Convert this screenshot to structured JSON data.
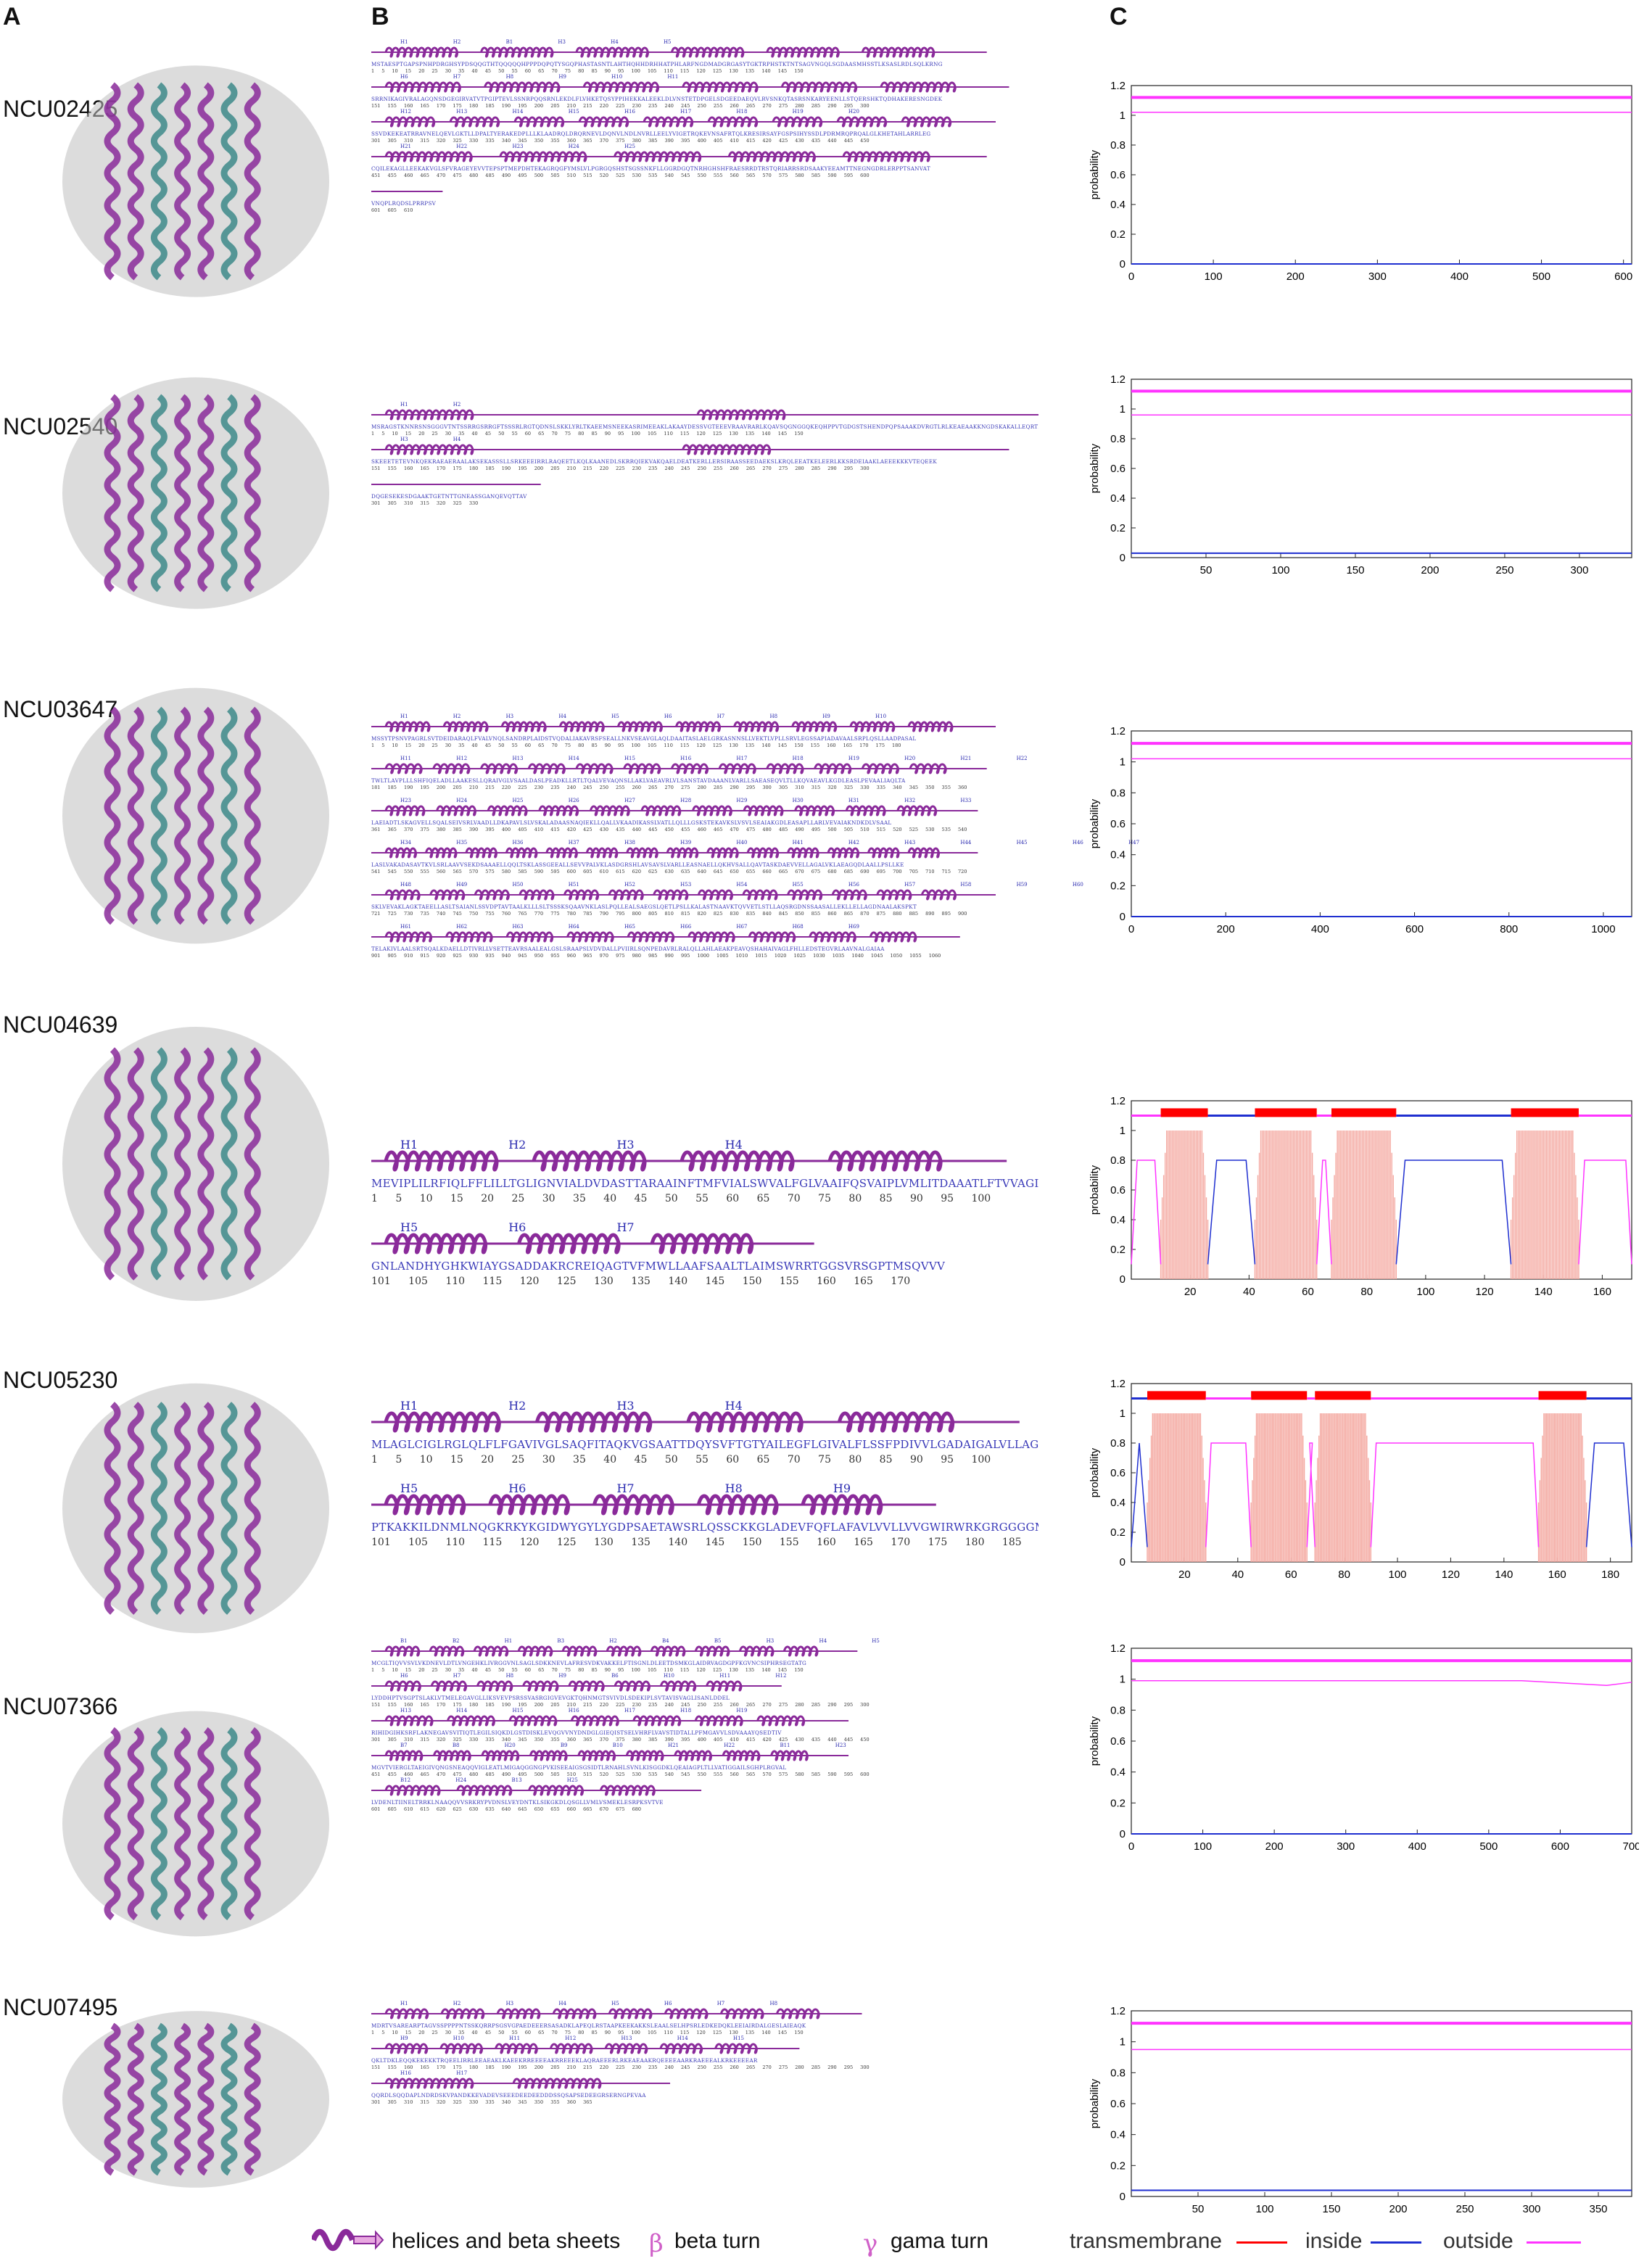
{
  "panels": {
    "a": "A",
    "b": "B",
    "c": "C"
  },
  "proteins": [
    {
      "id": "NCU02425",
      "seq_lines": [
        {
          "seq": "MSTAESPTGAPSPNHPDRGHSYPDSQQGTHTQQQQQHPPPDQPQTYSGQPHASTASNTLAHTHQHHDRHHATPHLARFNGDMADGRGASYTGKTRPHSTKTNTSAGVNGQLSGDAASMHSSTLKSASLRDLSQLKRNG",
          "nums": "1 5 10 15 20 25 30 35 40 45 50 55 60 65 70 75 80 85 90 95 100 105 110 115 120 125 130 135 140 145 150",
          "names": "H1 H2 B1 H3 H4 H5"
        },
        {
          "seq": "SRRNIKAGIVRALAGQNSDGEGIRVATVTPGIPTEVLSSNRPQQSRNLEKDLFLVHKETQSYPPIHEKKALEEKLDLVNSTETDPGELSDGEEDAEQVLRVSNKQTASRSNKARYEENLLSTQERSHKTQDHAKERESNGDEK",
          "nums": "151 155 160 165 170 175 180 185 190 195 200 205 210 215 220 225 230 235 240 245 250 255 260 265 270 275 280 285 290 295 300",
          "names": "H6 H7 H8 H9 H10 H11"
        },
        {
          "seq": "SSVDKEKEATRRAVNELQEVLGKTLLDPALTYERAKEDPLLLKLAADRQLDRQRNEVLDQNVLNDLNVRLLEELYVIGETRQKEVNSAFRTQLKRESIRSAYFGSPSIHYSSDLPDRMRQPRQALGLKHETAHLARRLEG",
          "nums": "301 305 310 315 320 325 330 335 340 345 350 355 360 365 370 375 380 385 390 395 400 405 410 415 420 425 430 435 440 445 450",
          "names": "H12 H13 H14 H15 H16 H17 H18 H19 H20"
        },
        {
          "seq": "CQILEKAGLLEEKAKVGLSFVRAGEYEVVTEPSPTMEPDHTEKAGRQGFYMSLVLPGRGQSHSTSGSSNKFLLGGRDGQTNRHGHSHFRAESRRDTRSTQRIARRSRDSAAKYEEAMTTNEGNGDRLERPPTSANVAT",
          "nums": "451 455 460 465 470 475 480 485 490 495 500 505 510 515 520 525 530 535 540 545 550 555 560 565 570 575 580 585 590 595 600",
          "names": "H21 H22 H23 H24 H25"
        },
        {
          "seq": "VNQPLRQDSLPRRPSV",
          "nums": "601 605 610",
          "names": ""
        }
      ],
      "plot": {
        "xmax": 610,
        "xticks": [
          0,
          100,
          200,
          300,
          400,
          500,
          600
        ],
        "outside": 1.12,
        "outside_thin": 1.02,
        "inside": 0.0
      }
    },
    {
      "id": "NCU02540",
      "seq_lines": [
        {
          "seq": "MSRAGSTKNNRSNSGGGVTNTSSRRGSRRGFTSSSRLRGTQDNSLSKKLYRLTKAEEMSNEEKASRIMEEAKLAKAAYDESSVGTEEEVRAAVRARLKQAVSQGNGGQKEQHPPVTGDGSTSHENDPQPSAAAKDVRGTLRLKEAEAAKKNGDSKAKALLEQRTEDLDASLKKVSTSIREIEADAKELSKKLKEEKLTAEETRTLAAA",
          "nums": "1 5 10 15 20 25 30 35 40 45 50 55 60 65 70 75 80 85 90 95 100 105 110 115 120 125 130 135 140 145 150",
          "names": "H1 H2"
        },
        {
          "seq": "SKEEETETEVNKQEKRAEAERAALAKSEKASSSLLSRKEEEIRRLRAQEETLKQLKAANEDLSKRRQIEKVAKQAELDEATKERLLERSIRAASSEEDAEKSLKRQLEEATKELEERLKKSRDEIAAKLAEEEKKKVTEQEEK",
          "nums": "151 155 160 165 170 175 180 185 190 195 200 205 210 215 220 225 230 235 240 245 250 255 260 265 270 275 280 285 290 295 300",
          "names": "H3 H4"
        },
        {
          "seq": "DQGESEKESDGAAKTGETNTTGNEASSGANQEVQTTAV",
          "nums": "301 305 310 315 320 325 330",
          "names": ""
        }
      ],
      "plot": {
        "xmax": 335,
        "xticks": [
          50,
          100,
          150,
          200,
          250,
          300
        ],
        "outside": 1.12,
        "outside_thin": 0.96,
        "inside": 0.03
      }
    },
    {
      "id": "NCU03647",
      "seq_lines": [
        {
          "seq": "MSSYTPSNVPAGRLSVTDEIDARAQLFVALVNQLSANDRPLAIDSTVQDALIAKAVRSFSEALLNKVSEAVGLAQLDAAITASLAELGRKASNNSLLVEKTLVPLLSRVLEGSSAPIADAVAALSRPLQSLLAADPASAL",
          "nums": "1 5 10 15 20 25 30 35 40 45 50 55 60 65 70 75 80 85 90 95 100 105 110 115 120 125 130 135 140 145 150 155 160 165 170 175 180",
          "names": "H1 H2 H3 H4 H5 H6 H7 H8 H9 H10"
        },
        {
          "seq": "TWLTLAVPLLLSHFIQELADLLAAKESLLQRAIVGLVSAALDASLPEADKLLRTLTQALVEVAQNSLLAKLVAEAVRLVLSANSTAVDAAANLVARLLSAEASEQVLTLLKQVAEAVLKGDLEASLPEVAALIAQLTA",
          "nums": "181 185 190 195 200 205 210 215 220 225 230 235 240 245 250 255 260 265 270 275 280 285 290 295 300 305 310 315 320 325 330 335 340 345 350 355 360",
          "names": "H11 H12 H13 H14 H15 H16 H17 H18 H19 H20 H21 H22"
        },
        {
          "seq": "LAEIADTLSKAGVELLSQALSEIVSRLVAADLLDKAPAVLSLVSKALADAASNAQIEKLLQALLVKAADIKASSLVATLLQLLLGSKSTEKAVKSLVSVLSEAIAKGDLEASAPLLARLVEVAIAKNDKDLVSAAL",
          "nums": "361 365 370 375 380 385 390 395 400 405 410 415 420 425 430 435 440 445 450 455 460 465 470 475 480 485 490 495 500 505 510 515 520 525 530 535 540",
          "names": "H23 H24 H25 H26 H27 H28 H29 H30 H31 H32 H33"
        },
        {
          "seq": "LASLVAKADASAVTKVLSRLAAVVSEKDSAAAELLQQLTSKLASSGEEALLSEVVPALVKLASDGRSHLAVSAVSLVARLLEASNAELLQKHVSALLQAVTASKDAEVVELLAGALVKLAEAGQDLAALLPSLLKE",
          "nums": "541 545 550 555 560 565 570 575 580 585 590 595 600 605 610 615 620 625 630 635 640 645 650 655 660 665 670 675 680 685 690 695 700 705 710 715 720",
          "names": "H34 H35 H36 H37 H38 H39 H40 H41 H42 H43 H44 H45 H46 H47"
        },
        {
          "seq": "SKLVEVAKLAGKTAEELLASLTSAIANLSSVDPTAVTAALKLLLSLTSSSKSQAAVNKLASLPQLLEALSAEGSLQETLPSLLKALASTNAAVKTQVVETLSTLLAQSRGDNSSAASALLEKLLELLAGDNAALAKSPKT",
          "nums": "721 725 730 735 740 745 750 755 760 765 770 775 780 785 790 795 800 805 810 815 820 825 830 835 840 845 850 855 860 865 870 875 880 885 890 895 900",
          "names": "H48 H49 H50 H51 H52 H53 H54 H55 H56 H57 H58 H59 H60"
        },
        {
          "seq": "TELAKIVLAALSRTSQALKDAELLDTIVRLLVSETTEAVRSAALEALGSLSRAAPSLVDVDALLPVIIRLSQNPEDAVRLRALQLLAHLAEAKPEAVQSHAHAIVAGLFHLLEDSTEGVRLAAVNALGAIAA",
          "nums": "901 905 910 915 920 925 930 935 940 945 950 955 960 965 970 975 980 985 990 995 1000 1005 1010 1015 1020 1025 1030 1035 1040 1045 1050 1055 1060",
          "names": "H61 H62 H63 H64 H65 H66 H67 H68 H69"
        }
      ],
      "plot": {
        "xmax": 1060,
        "xticks": [
          0,
          200,
          400,
          600,
          800,
          1000
        ],
        "outside": 1.12,
        "outside_thin": 1.02,
        "inside": 0.0
      }
    },
    {
      "id": "NCU04639",
      "seq_lines": [
        {
          "seq": "MEVIPLILRFIQLFFLILLTGLIGNVIALDVDASTTARAAINFTMFVIALSWVALFGLVAAIFQSVAIPLVMLITDAAATLFTVVAGIVLAAKLGTPNC",
          "nums": "1 5 10 15 20 25 30 35 40 45 50 55 60 65 70 75 80 85 90 95 100",
          "names": "H1 H2 H3 H4"
        },
        {
          "seq": "GNLANDHYGHKWIAYGSADDAKRCREIQAGTVFMWLLAAFSAALTLAIMSWRRTGGSVRSGPTMSQVVV",
          "nums": "101 105 110 115 120 125 130 135 140 145 150 155 160 165 170",
          "names": "H5 H6 H7"
        }
      ],
      "plot": {
        "xmax": 170,
        "xticks": [
          20,
          40,
          60,
          80,
          100,
          120,
          140,
          160
        ],
        "tm": [
          [
            10,
            26
          ],
          [
            42,
            63
          ],
          [
            68,
            90
          ],
          [
            129,
            152
          ]
        ],
        "inside_ranges": [
          [
            26,
            42
          ],
          [
            90,
            129
          ]
        ],
        "outside_ranges": [
          [
            0,
            10
          ],
          [
            63,
            68
          ],
          [
            152,
            170
          ]
        ]
      }
    },
    {
      "id": "NCU05230",
      "seq_lines": [
        {
          "seq": "MLAGLCIGLRGLQLFLFGAVIVGLSAQFITAQKVGSAATTDQYSVFTGTYAILEGFLGIVALFLSSFPDIVVLGADAIGALVLLAGGIAWAVETRGFSCTD",
          "nums": "1 5 10 15 20 25 30 35 40 45 50 55 60 65 70 75 80 85 90 95 100",
          "names": "H1 H2 H3 H4"
        },
        {
          "seq": "PTKAKKILDNMLNQGKRKYKGIDWYGYLYGDPSAETAWSRLQSSCKKGLADEVFQFLAFAVLVVLLVVGWIRWRKGRGGGGMGSRSVV",
          "nums": "101 105 110 115 120 125 130 135 140 145 150 155 160 165 170 175 180 185",
          "names": "H5 H6 H7 H8 H9"
        }
      ],
      "plot": {
        "xmax": 188,
        "xticks": [
          20,
          40,
          60,
          80,
          100,
          120,
          140,
          160,
          180
        ],
        "tm": [
          [
            6,
            28
          ],
          [
            45,
            66
          ],
          [
            69,
            90
          ],
          [
            153,
            171
          ]
        ],
        "inside_ranges": [
          [
            0,
            6
          ],
          [
            171,
            188
          ]
        ],
        "outside_ranges": [
          [
            28,
            45
          ],
          [
            66,
            69
          ],
          [
            90,
            153
          ]
        ]
      }
    },
    {
      "id": "NCU07366",
      "seq_lines": [
        {
          "seq": "MCGLTIQVVSVLVKDNEVLDTLVNGEHKLIVRGGVNLSAGLSDKKNEVLAFRESVDKVAKKELFTISGNLDLEETDSMKGLAIDRVAGDGPFKGVNCSIPHRSEGTATG",
          "nums": "1 5 10 15 20 25 30 35 40 45 50 55 60 65 70 75 80 85 90 95 100 105 110 115 120 125 130 135 140 145 150",
          "names": "B1 B2 H1 B3 H2 B4 B5 H3 H4 H5"
        },
        {
          "seq": "LYDDHPTVSGPTSLAKLVTMELEGAVGLLIKSVEVPSRSSVASRGIGVEVGKTQHNMGTSVIVDLSDEKIPLSVTAVISVAGLISANLDDEL",
          "nums": "151 155 160 165 170 175 180 185 190 195 200 205 210 215 220 225 230 235 240 245 250 255 260 265 270 275 280 285 290 295 300",
          "names": "H6 H7 H8 H9 B6 H10 H11 H12"
        },
        {
          "seq": "RIHIDGIHKSRFLAKNEGAVSVITIQTLEGILSIQKDLGSTDISKLEVQGVVNYDNDGLGIEQISTSELVHRFLVAVSTIDTALLPFMGAVVLSDVAAAYQSEDTIV",
          "nums": "301 305 310 315 320 325 330 335 340 345 350 355 360 365 370 375 380 385 390 395 400 405 410 415 420 425 430 435 440 445 450",
          "names": "H13 H14 H15 H16 H17 H18 H19"
        },
        {
          "seq": "MGVTVIERGLTAEIGIVQNGSNEAQQVIGLEATLMIGAQGGNGPVKISEEAIGSGSIDTLRNAHLSVNLKISGGDKLQEAIAGPLTLLVATIGGAILSGHPLRGVAL",
          "nums": "451 455 460 465 470 475 480 485 490 495 500 505 510 515 520 525 530 535 540 545 550 555 560 565 570 575 580 585 590 595 600",
          "names": "B7 B8 H20 B9 B10 H21 H22 B11 H23"
        },
        {
          "seq": "LVDENLTIINELTRRKLNAAQQVVSRKRYPVDNSLVEYDNTKLSIKGKDLQSGLLVMLVSMEKLESRPKSVTVE",
          "nums": "601 605 610 615 620 625 630 635 640 645 650 655 660 665 670 675 680",
          "names": "B12 H24 B13 H25"
        }
      ],
      "plot": {
        "xmax": 700,
        "xticks": [
          0,
          100,
          200,
          300,
          400,
          500,
          600,
          700
        ],
        "outside": 1.12,
        "outside_thin": 0.99,
        "inside": 0.0,
        "outside_dip": true
      }
    },
    {
      "id": "NCU07495",
      "seq_lines": [
        {
          "seq": "MDRTVSAREARPTAGVSSPPPPNTSSKQRRPSGSVGPAEDEEERSASADKLAPEQLRSTAAPKEEKAKKSLEAALSELHPSRLEDKEDQKLEEIAIRDALGESLAIEAQK",
          "nums": "1 5 10 15 20 25 30 35 40 45 50 55 60 65 70 75 80 85 90 95 100 105 110 115 120 125 130 135 140 145 150",
          "names": "H1 H2 H3 H4 H5 H6 H7 H8"
        },
        {
          "seq": "QKLTDKLEQQKEKEKKTRQEELIRRLEEAEAKLKAEEKRREEEEAKRREEEKLAQRAEEERLRKEAEAAKRQEEEEAARKRAEEEALKRKEEEEAR",
          "nums": "151 155 160 165 170 175 180 185 190 195 200 205 210 215 220 225 230 235 240 245 250 255 260 265 270 275 280 285 290 295 300",
          "names": "H9 H10 H11 H12 H13 H14 H15"
        },
        {
          "seq": "QQRDLSQQDAPLNDRDSKVPANDKKEVADEVSEEEDEEDEEDDDSSQSAPSEDEEGRSERNGPEVAA",
          "nums": "301 305 310 315 320 325 330 335 340 345 350 355 360 365",
          "names": "H16 H17"
        }
      ],
      "plot": {
        "xmax": 375,
        "xticks": [
          50,
          100,
          150,
          200,
          250,
          300,
          350
        ],
        "outside": 1.12,
        "outside_thin": 0.95,
        "inside": 0.04
      }
    }
  ],
  "axis": {
    "ylabel": "probability",
    "yticks": [
      "0",
      "0.2",
      "0.4",
      "0.6",
      "0.8",
      "1",
      "1.2"
    ]
  },
  "legend": {
    "helices": "helices and beta sheets",
    "beta_symbol": "β",
    "beta": "beta turn",
    "gamma_symbol": "γ",
    "gamma": "gama turn",
    "transmembrane": "transmembrane",
    "inside": "inside",
    "outside": "outside"
  },
  "colors": {
    "helix": "#8a2a9a",
    "sheet": "#e8a8e0",
    "seq_text": "#3a3ab8",
    "tm": "#ff0000",
    "tm_bar": "#f4a8a0",
    "inside": "#1f2fd0",
    "outside": "#ff33ff"
  }
}
